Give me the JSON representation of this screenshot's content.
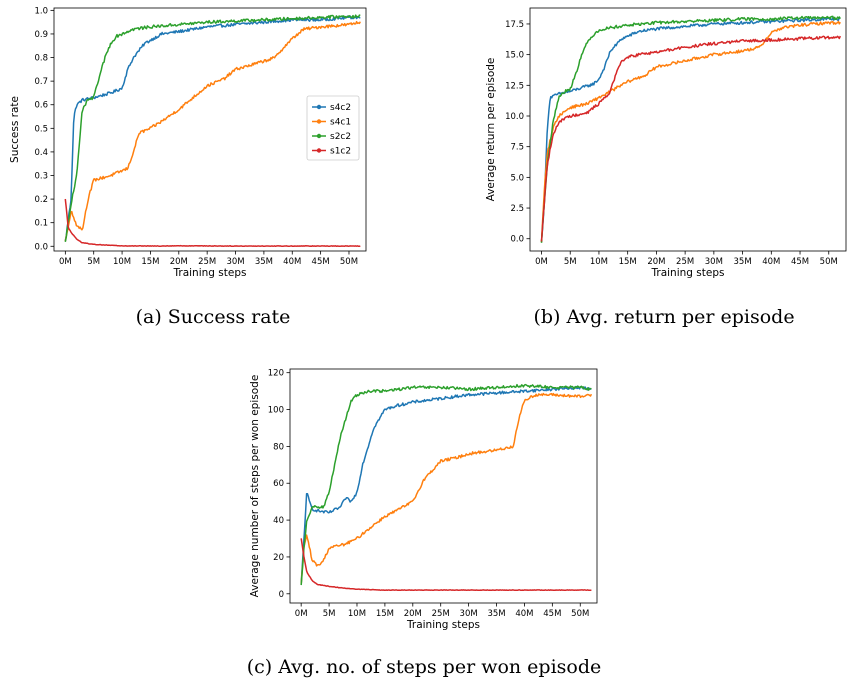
{
  "figure": {
    "captions": [
      "(a) Success rate",
      "(b) Avg. return per episode",
      "(c) Avg. no. of steps per won episode"
    ]
  },
  "series_styles": [
    {
      "name": "s4c2",
      "color": "#1f77b4"
    },
    {
      "name": "s4c1",
      "color": "#ff7f0e"
    },
    {
      "name": "s2c2",
      "color": "#2ca02c"
    },
    {
      "name": "s1c2",
      "color": "#d62728"
    }
  ],
  "chart_data": [
    {
      "type": "line",
      "title": "",
      "xlabel": "Training steps",
      "ylabel": "Success rate",
      "xlim": [
        -2,
        53
      ],
      "ylim": [
        -0.02,
        1.01
      ],
      "xticks": [
        0,
        5,
        10,
        15,
        20,
        25,
        30,
        35,
        40,
        45,
        50
      ],
      "xtick_labels": [
        "0M",
        "5M",
        "10M",
        "15M",
        "20M",
        "25M",
        "30M",
        "35M",
        "40M",
        "45M",
        "50M"
      ],
      "yticks": [
        0.0,
        0.1,
        0.2,
        0.3,
        0.4,
        0.5,
        0.6,
        0.7,
        0.8,
        0.9,
        1.0
      ],
      "ytick_labels": [
        "0.0",
        "0.1",
        "0.2",
        "0.3",
        "0.4",
        "0.5",
        "0.6",
        "0.7",
        "0.8",
        "0.9",
        "1.0"
      ],
      "legend": {
        "position": "center-right",
        "entries": [
          "s4c2",
          "s4c1",
          "s2c2",
          "s1c2"
        ]
      },
      "grid": false,
      "x_units": "millions of training steps",
      "series": [
        {
          "name": "s4c2",
          "x": [
            0,
            1,
            1.5,
            2,
            3,
            5,
            8,
            9,
            10,
            11,
            12,
            14,
            17,
            20,
            25,
            30,
            35,
            40,
            45,
            50,
            52
          ],
          "y": [
            0.02,
            0.2,
            0.55,
            0.6,
            0.62,
            0.63,
            0.65,
            0.66,
            0.67,
            0.75,
            0.8,
            0.86,
            0.9,
            0.91,
            0.93,
            0.94,
            0.95,
            0.96,
            0.96,
            0.97,
            0.97
          ]
        },
        {
          "name": "s4c1",
          "x": [
            0,
            1,
            2,
            3,
            4,
            5,
            8,
            11,
            12,
            13,
            15,
            17,
            20,
            22,
            25,
            28,
            30,
            33,
            37,
            38,
            40,
            42,
            45,
            50,
            52
          ],
          "y": [
            0.02,
            0.15,
            0.09,
            0.07,
            0.2,
            0.28,
            0.3,
            0.33,
            0.4,
            0.48,
            0.5,
            0.53,
            0.58,
            0.62,
            0.68,
            0.71,
            0.75,
            0.77,
            0.8,
            0.83,
            0.88,
            0.92,
            0.93,
            0.94,
            0.95
          ]
        },
        {
          "name": "s2c2",
          "x": [
            0,
            1,
            2,
            3,
            4,
            5,
            6,
            7,
            8,
            9,
            10,
            12,
            15,
            20,
            25,
            30,
            35,
            40,
            45,
            50,
            52
          ],
          "y": [
            0.02,
            0.18,
            0.3,
            0.58,
            0.62,
            0.63,
            0.72,
            0.8,
            0.86,
            0.89,
            0.9,
            0.92,
            0.93,
            0.94,
            0.95,
            0.955,
            0.96,
            0.965,
            0.97,
            0.975,
            0.975
          ]
        },
        {
          "name": "s1c2",
          "x": [
            0,
            0.5,
            1,
            2,
            3,
            5,
            8,
            10,
            15,
            20,
            30,
            40,
            50,
            52
          ],
          "y": [
            0.2,
            0.08,
            0.06,
            0.03,
            0.015,
            0.008,
            0.004,
            0.002,
            0.001,
            0.002,
            0.001,
            0.001,
            0.001,
            0.001
          ]
        }
      ]
    },
    {
      "type": "line",
      "title": "",
      "xlabel": "Training steps",
      "ylabel": "Average return per episode",
      "xlim": [
        -2,
        53
      ],
      "ylim": [
        -1.0,
        18.8
      ],
      "xticks": [
        0,
        5,
        10,
        15,
        20,
        25,
        30,
        35,
        40,
        45,
        50
      ],
      "xtick_labels": [
        "0M",
        "5M",
        "10M",
        "15M",
        "20M",
        "25M",
        "30M",
        "35M",
        "40M",
        "45M",
        "50M"
      ],
      "yticks": [
        0.0,
        2.5,
        5.0,
        7.5,
        10.0,
        12.5,
        15.0,
        17.5
      ],
      "ytick_labels": [
        "0.0",
        "2.5",
        "5.0",
        "7.5",
        "10.0",
        "12.5",
        "15.0",
        "17.5"
      ],
      "grid": false,
      "x_units": "millions of training steps",
      "series": [
        {
          "name": "s4c2",
          "x": [
            0,
            0.5,
            1,
            1.5,
            3,
            5,
            7,
            9,
            10,
            11,
            12,
            14,
            17,
            20,
            25,
            30,
            35,
            40,
            45,
            50,
            52
          ],
          "y": [
            -0.3,
            3,
            9,
            11.5,
            11.8,
            12.0,
            12.3,
            12.6,
            13.0,
            14.0,
            15.3,
            16.3,
            16.9,
            17.1,
            17.3,
            17.5,
            17.6,
            17.7,
            17.8,
            17.9,
            17.9
          ]
        },
        {
          "name": "s4c1",
          "x": [
            0,
            0.5,
            1,
            2,
            3,
            5,
            8,
            10,
            12,
            15,
            18,
            20,
            25,
            30,
            35,
            38,
            40,
            42,
            45,
            50,
            52
          ],
          "y": [
            -0.3,
            4,
            7,
            9,
            10,
            10.7,
            11.0,
            11.5,
            12.0,
            12.8,
            13.3,
            14.0,
            14.5,
            15.0,
            15.3,
            15.6,
            16.8,
            17.2,
            17.4,
            17.6,
            17.6
          ]
        },
        {
          "name": "s2c2",
          "x": [
            0,
            0.5,
            1,
            2,
            3,
            4,
            5,
            6,
            7,
            8,
            9,
            10,
            12,
            15,
            20,
            25,
            30,
            35,
            40,
            45,
            50,
            52
          ],
          "y": [
            -0.3,
            3,
            6,
            9.5,
            11.5,
            12.0,
            12.2,
            13.5,
            15.0,
            16.0,
            16.6,
            17.0,
            17.2,
            17.4,
            17.6,
            17.7,
            17.8,
            17.9,
            17.9,
            18.0,
            18.0,
            18.0
          ]
        },
        {
          "name": "s1c2",
          "x": [
            0,
            0.5,
            1,
            2,
            3,
            5,
            8,
            10,
            12,
            13,
            14,
            15,
            17,
            20,
            25,
            30,
            35,
            40,
            45,
            50,
            52
          ],
          "y": [
            -0.3,
            3,
            6,
            8.5,
            9.5,
            10.0,
            10.3,
            11.0,
            12.0,
            13.5,
            14.5,
            14.8,
            15.0,
            15.2,
            15.6,
            15.9,
            16.1,
            16.2,
            16.3,
            16.4,
            16.4
          ]
        }
      ]
    },
    {
      "type": "line",
      "title": "",
      "xlabel": "Training steps",
      "ylabel": "Average number of steps per won episode",
      "xlim": [
        -2,
        53
      ],
      "ylim": [
        -5,
        122
      ],
      "xticks": [
        0,
        5,
        10,
        15,
        20,
        25,
        30,
        35,
        40,
        45,
        50
      ],
      "xtick_labels": [
        "0M",
        "5M",
        "10M",
        "15M",
        "20M",
        "25M",
        "30M",
        "35M",
        "40M",
        "45M",
        "50M"
      ],
      "yticks": [
        0,
        20,
        40,
        60,
        80,
        100,
        120
      ],
      "ytick_labels": [
        "0",
        "20",
        "40",
        "60",
        "80",
        "100",
        "120"
      ],
      "grid": false,
      "x_units": "millions of training steps",
      "series": [
        {
          "name": "s4c2",
          "x": [
            0,
            0.5,
            1,
            1.5,
            2,
            3,
            5,
            7,
            8,
            9,
            10,
            11,
            12,
            13,
            15,
            17,
            20,
            25,
            30,
            35,
            40,
            45,
            50,
            52
          ],
          "y": [
            5,
            30,
            55,
            50,
            46,
            45,
            44,
            47,
            52,
            50,
            55,
            70,
            80,
            90,
            100,
            102,
            104,
            106,
            108,
            109,
            110,
            111,
            112,
            111
          ]
        },
        {
          "name": "s4c1",
          "x": [
            0,
            0.5,
            1,
            2,
            3,
            4,
            5,
            8,
            10,
            12,
            15,
            17,
            20,
            22,
            25,
            28,
            30,
            35,
            38,
            39,
            40,
            42,
            45,
            50,
            52
          ],
          "y": [
            5,
            25,
            32,
            18,
            15,
            18,
            25,
            27,
            30,
            35,
            42,
            45,
            50,
            62,
            72,
            74,
            76,
            78,
            80,
            95,
            105,
            108,
            108,
            107,
            108
          ]
        },
        {
          "name": "s2c2",
          "x": [
            0,
            0.5,
            1,
            2,
            3,
            4,
            5,
            6,
            7,
            8,
            9,
            10,
            12,
            15,
            20,
            25,
            30,
            35,
            40,
            45,
            50,
            52
          ],
          "y": [
            5,
            25,
            40,
            47,
            47,
            47,
            55,
            70,
            85,
            95,
            105,
            108,
            110,
            110,
            112,
            112,
            111,
            112,
            113,
            112,
            112,
            111
          ]
        },
        {
          "name": "s1c2",
          "x": [
            0,
            0.5,
            1,
            2,
            3,
            5,
            8,
            10,
            15,
            20,
            30,
            40,
            50,
            52
          ],
          "y": [
            30,
            20,
            12,
            7,
            5,
            4,
            3,
            2.5,
            2,
            2,
            2,
            2,
            2,
            2
          ]
        }
      ]
    }
  ]
}
